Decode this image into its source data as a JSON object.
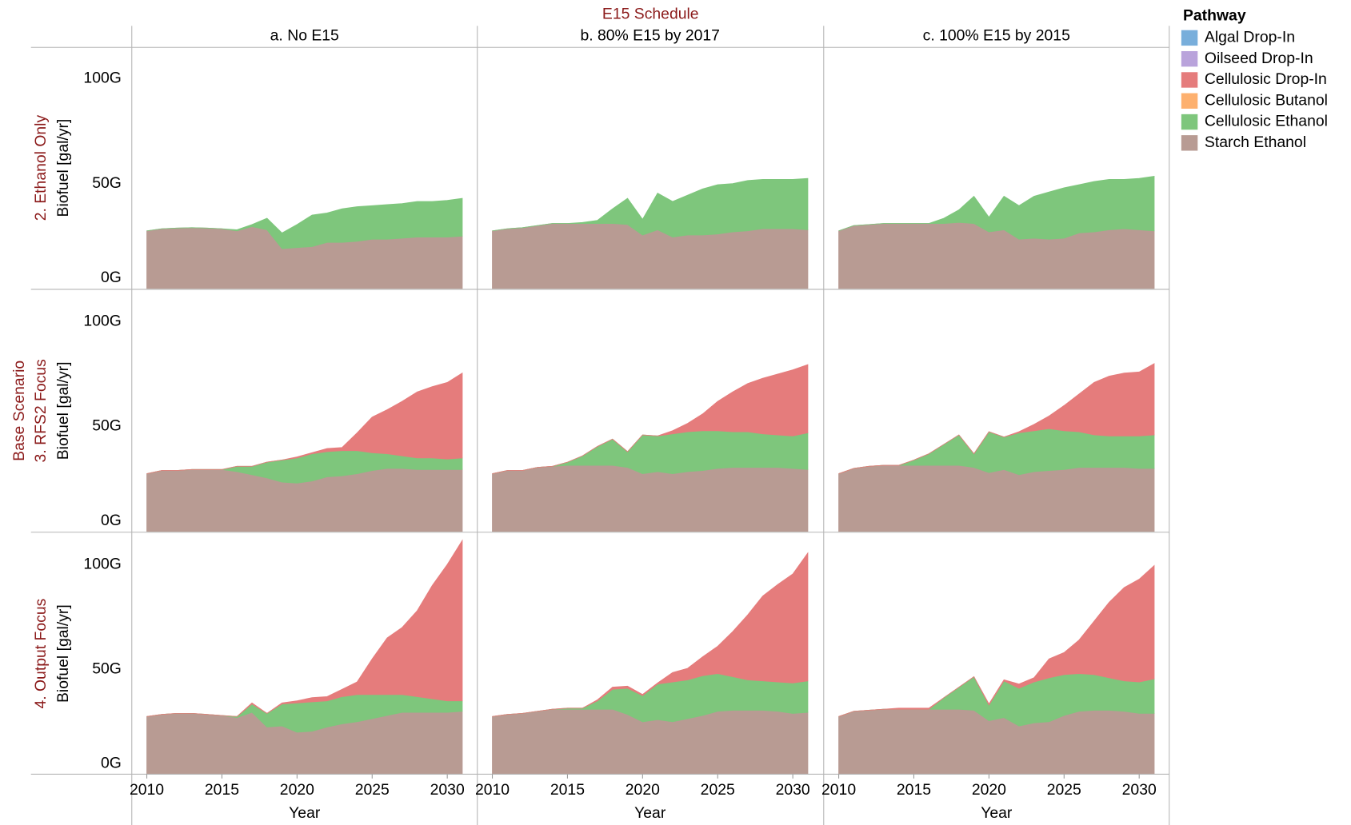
{
  "title": "E15 Schedule",
  "columns": [
    "a. No E15",
    "b. 80% E15 by 2017",
    "c. 100% E15 by 2015"
  ],
  "rows": [
    [
      "2. Ethanol Only"
    ],
    [
      "Base Scenario",
      "3. RFS2 Focus"
    ],
    [
      "4. Output Focus"
    ]
  ],
  "legend": {
    "title": "Pathway",
    "items": [
      {
        "name": "Algal Drop-In",
        "color": "#78aedb"
      },
      {
        "name": "Oilseed Drop-In",
        "color": "#b9a3db"
      },
      {
        "name": "Cellulosic Drop-In",
        "color": "#e57c7c"
      },
      {
        "name": "Cellulosic Butanol",
        "color": "#fdb06e"
      },
      {
        "name": "Cellulosic Ethanol",
        "color": "#7ec67c"
      },
      {
        "name": "Starch Ethanol",
        "color": "#b89b93"
      }
    ]
  },
  "axes": {
    "xlabel": "Year",
    "ylabel": "Biofuel [gal/yr]",
    "xlim": [
      2009,
      2032
    ],
    "xticks": [
      2010,
      2015,
      2020,
      2025,
      2030
    ],
    "ylim": [
      0,
      115
    ],
    "yticks": [
      {
        "value": 0,
        "label": "0G"
      },
      {
        "value": 50,
        "label": "50G"
      },
      {
        "value": 100,
        "label": "100G"
      }
    ]
  },
  "chart_data": [
    {
      "type": "area",
      "stacked": true,
      "x": [
        2010,
        2011,
        2012,
        2013,
        2014,
        2015,
        2016,
        2017,
        2018,
        2019,
        2020,
        2021,
        2022,
        2023,
        2024,
        2025,
        2026,
        2027,
        2028,
        2029,
        2030,
        2031
      ],
      "series": [
        {
          "name": "Starch Ethanol",
          "color": "#b89b93",
          "values": [
            27.5,
            28.5,
            28.8,
            29,
            28.8,
            28.5,
            27.5,
            29.5,
            28,
            19,
            19.5,
            20,
            22,
            22,
            22.5,
            23.5,
            23.5,
            24,
            24.5,
            24.5,
            24.5,
            25
          ]
        },
        {
          "name": "Cellulosic Ethanol",
          "color": "#7ec67c",
          "values": [
            0,
            0,
            0,
            0,
            0,
            0,
            0.5,
            1,
            5.5,
            7.5,
            11,
            15,
            14,
            16,
            16.5,
            16,
            16.5,
            16.5,
            17,
            17,
            17.5,
            18
          ]
        }
      ]
    },
    {
      "type": "area",
      "stacked": true,
      "x": [
        2010,
        2011,
        2012,
        2013,
        2014,
        2015,
        2016,
        2017,
        2018,
        2019,
        2020,
        2021,
        2022,
        2023,
        2024,
        2025,
        2026,
        2027,
        2028,
        2029,
        2030,
        2031
      ],
      "series": [
        {
          "name": "Starch Ethanol",
          "color": "#b89b93",
          "values": [
            27.5,
            28.5,
            29,
            30,
            31,
            31,
            31,
            31,
            31,
            30.5,
            25.5,
            28,
            24.5,
            25.5,
            25.5,
            26,
            27,
            27.5,
            28.5,
            28.5,
            28.5,
            28
          ]
        },
        {
          "name": "Cellulosic Ethanol",
          "color": "#7ec67c",
          "values": [
            0,
            0,
            0,
            0,
            0,
            0,
            0.5,
            1.5,
            7,
            12.5,
            7.5,
            17.5,
            17,
            19,
            22,
            23.5,
            23,
            24,
            23.5,
            23.5,
            23.5,
            24.5
          ]
        }
      ]
    },
    {
      "type": "area",
      "stacked": true,
      "x": [
        2010,
        2011,
        2012,
        2013,
        2014,
        2015,
        2016,
        2017,
        2018,
        2019,
        2020,
        2021,
        2022,
        2023,
        2024,
        2025,
        2026,
        2027,
        2028,
        2029,
        2030,
        2031
      ],
      "series": [
        {
          "name": "Starch Ethanol",
          "color": "#b89b93",
          "values": [
            27.5,
            30,
            30.5,
            31,
            31,
            31,
            31,
            31,
            31.5,
            31,
            27,
            28,
            23.5,
            24,
            23.5,
            24,
            26.5,
            27,
            28,
            28.5,
            28,
            27.5
          ]
        },
        {
          "name": "Cellulosic Ethanol",
          "color": "#7ec67c",
          "values": [
            0,
            0,
            0,
            0,
            0,
            0,
            0,
            2.5,
            6,
            13,
            7,
            16,
            16,
            20,
            22.5,
            24,
            23,
            24,
            24,
            23.5,
            24.5,
            26
          ]
        }
      ]
    },
    {
      "type": "area",
      "stacked": true,
      "x": [
        2010,
        2011,
        2012,
        2013,
        2014,
        2015,
        2016,
        2017,
        2018,
        2019,
        2020,
        2021,
        2022,
        2023,
        2024,
        2025,
        2026,
        2027,
        2028,
        2029,
        2030,
        2031
      ],
      "series": [
        {
          "name": "Starch Ethanol",
          "color": "#b89b93",
          "values": [
            27.5,
            29,
            29,
            29.5,
            29.5,
            29.5,
            28.5,
            27,
            25.5,
            23.5,
            23,
            24,
            26,
            26.5,
            27.5,
            29,
            30,
            30,
            29.5,
            29.5,
            29.5,
            29.5
          ]
        },
        {
          "name": "Cellulosic Ethanol",
          "color": "#7ec67c",
          "values": [
            0,
            0,
            0,
            0,
            0,
            0,
            2.5,
            4,
            7.5,
            10.5,
            12,
            13,
            12,
            12,
            11,
            8.5,
            7,
            6,
            5.5,
            5.5,
            5,
            5.5
          ]
        },
        {
          "name": "Cellulosic Drop-In",
          "color": "#e57c7c",
          "values": [
            0,
            0,
            0,
            0,
            0,
            0,
            0,
            0,
            0,
            0,
            0.5,
            0.5,
            1.5,
            1.5,
            8.5,
            17,
            21,
            26,
            31.5,
            34,
            36.5,
            40.5
          ]
        }
      ]
    },
    {
      "type": "area",
      "stacked": true,
      "x": [
        2010,
        2011,
        2012,
        2013,
        2014,
        2015,
        2016,
        2017,
        2018,
        2019,
        2020,
        2021,
        2022,
        2023,
        2024,
        2025,
        2026,
        2027,
        2028,
        2029,
        2030,
        2031
      ],
      "series": [
        {
          "name": "Starch Ethanol",
          "color": "#b89b93",
          "values": [
            27.5,
            29,
            29,
            30.5,
            31,
            31.5,
            31.5,
            31.5,
            31.5,
            30.5,
            27.5,
            28.5,
            27.5,
            28.5,
            29,
            30,
            30.5,
            30.5,
            30.5,
            30.5,
            30,
            29.5
          ]
        },
        {
          "name": "Cellulosic Ethanol",
          "color": "#7ec67c",
          "values": [
            0,
            0,
            0,
            0,
            0,
            1.5,
            4.5,
            9,
            12.5,
            7.5,
            18.5,
            17,
            19,
            19,
            19,
            18,
            17,
            17,
            16,
            15.5,
            15.5,
            17.5
          ]
        },
        {
          "name": "Cellulosic Drop-In",
          "color": "#e57c7c",
          "values": [
            0,
            0,
            0,
            0,
            0,
            0,
            0,
            0,
            0,
            0,
            0,
            0,
            1.5,
            4,
            8,
            14,
            19,
            23,
            26.5,
            29,
            31.5,
            32.5
          ]
        }
      ]
    },
    {
      "type": "area",
      "stacked": true,
      "x": [
        2010,
        2011,
        2012,
        2013,
        2014,
        2015,
        2016,
        2017,
        2018,
        2019,
        2020,
        2021,
        2022,
        2023,
        2024,
        2025,
        2026,
        2027,
        2028,
        2029,
        2030,
        2031
      ],
      "series": [
        {
          "name": "Starch Ethanol",
          "color": "#b89b93",
          "values": [
            27.5,
            30,
            31,
            31.5,
            31.5,
            31.5,
            31.5,
            31.5,
            31.5,
            30.5,
            28,
            29.5,
            27,
            28.5,
            29,
            29.5,
            30.5,
            30.5,
            30.5,
            30.5,
            30,
            30
          ]
        },
        {
          "name": "Cellulosic Ethanol",
          "color": "#7ec67c",
          "values": [
            0,
            0,
            0,
            0,
            0,
            2.5,
            5.5,
            10,
            14.5,
            6.5,
            19.5,
            15.5,
            20,
            19.5,
            20,
            18.5,
            17,
            15.5,
            15,
            15,
            15.5,
            16
          ]
        },
        {
          "name": "Cellulosic Drop-In",
          "color": "#e57c7c",
          "values": [
            0,
            0,
            0,
            0,
            0,
            0,
            0,
            0,
            0,
            0,
            0,
            0,
            0.5,
            3,
            6,
            12,
            18,
            25,
            28.5,
            30,
            30.5,
            34
          ]
        }
      ]
    },
    {
      "type": "area",
      "stacked": true,
      "x": [
        2010,
        2011,
        2012,
        2013,
        2014,
        2015,
        2016,
        2017,
        2018,
        2019,
        2020,
        2021,
        2022,
        2023,
        2024,
        2025,
        2026,
        2027,
        2028,
        2029,
        2030,
        2031
      ],
      "series": [
        {
          "name": "Starch Ethanol",
          "color": "#b89b93",
          "values": [
            27.5,
            28.5,
            29,
            29,
            28.5,
            28,
            27,
            29.5,
            22.5,
            23,
            20,
            20.5,
            22.5,
            24,
            25,
            26.5,
            28,
            29.5,
            29.5,
            29.5,
            29.5,
            30
          ]
        },
        {
          "name": "Cellulosic Ethanol",
          "color": "#7ec67c",
          "values": [
            0,
            0,
            0,
            0,
            0,
            0,
            0.5,
            4,
            6.5,
            10.5,
            14,
            14,
            12.5,
            13,
            13,
            11.5,
            10,
            8.5,
            7.5,
            6.5,
            5.5,
            5
          ]
        },
        {
          "name": "Cellulosic Drop-In",
          "color": "#e57c7c",
          "values": [
            0,
            0,
            0,
            0,
            0,
            0,
            0,
            0.5,
            0,
            0.5,
            1,
            2,
            2,
            3.5,
            6,
            17,
            27,
            32,
            41,
            54,
            65,
            76.5
          ]
        }
      ]
    },
    {
      "type": "area",
      "stacked": true,
      "x": [
        2010,
        2011,
        2012,
        2013,
        2014,
        2015,
        2016,
        2017,
        2018,
        2019,
        2020,
        2021,
        2022,
        2023,
        2024,
        2025,
        2026,
        2027,
        2028,
        2029,
        2030,
        2031
      ],
      "series": [
        {
          "name": "Starch Ethanol",
          "color": "#b89b93",
          "values": [
            27.5,
            28.5,
            29,
            30,
            31,
            31,
            31,
            31,
            31,
            28.5,
            25,
            26,
            25,
            26.5,
            28,
            30,
            30.5,
            30.5,
            30.5,
            30,
            29,
            29.5
          ]
        },
        {
          "name": "Cellulosic Ethanol",
          "color": "#7ec67c",
          "values": [
            0,
            0,
            0,
            0,
            0,
            0.5,
            0.5,
            4,
            9.5,
            12.5,
            12.5,
            17,
            19,
            18.5,
            19,
            18,
            16,
            14.5,
            14,
            14,
            14.5,
            15
          ]
        },
        {
          "name": "Cellulosic Drop-In",
          "color": "#e57c7c",
          "values": [
            0,
            0,
            0,
            0,
            0,
            0,
            0,
            0.5,
            1,
            1,
            0.5,
            0.5,
            4.5,
            5.5,
            9,
            13,
            21.5,
            31,
            40.5,
            46.5,
            52,
            61
          ]
        }
      ]
    },
    {
      "type": "area",
      "stacked": true,
      "x": [
        2010,
        2011,
        2012,
        2013,
        2014,
        2015,
        2016,
        2017,
        2018,
        2019,
        2020,
        2021,
        2022,
        2023,
        2024,
        2025,
        2026,
        2027,
        2028,
        2029,
        2030,
        2031
      ],
      "series": [
        {
          "name": "Starch Ethanol",
          "color": "#b89b93",
          "values": [
            27.5,
            30,
            30.5,
            31,
            31,
            31,
            31,
            31,
            31,
            30.5,
            25.5,
            27,
            23,
            24.5,
            25,
            28,
            30,
            30.5,
            30.5,
            30,
            29,
            29
          ]
        },
        {
          "name": "Cellulosic Ethanol",
          "color": "#7ec67c",
          "values": [
            0,
            0,
            0,
            0,
            0,
            0,
            0,
            5.5,
            10.5,
            16,
            7.5,
            17.5,
            18,
            19.5,
            21,
            19.5,
            18,
            17,
            15.5,
            14.5,
            15,
            16.5
          ]
        },
        {
          "name": "Cellulosic Drop-In",
          "color": "#e57c7c",
          "values": [
            0,
            0,
            0,
            0,
            0.5,
            0.5,
            0.5,
            0,
            0,
            0,
            0.5,
            0.5,
            2,
            2,
            9,
            10.5,
            16,
            25.5,
            36,
            44.5,
            49,
            54
          ]
        }
      ]
    }
  ]
}
